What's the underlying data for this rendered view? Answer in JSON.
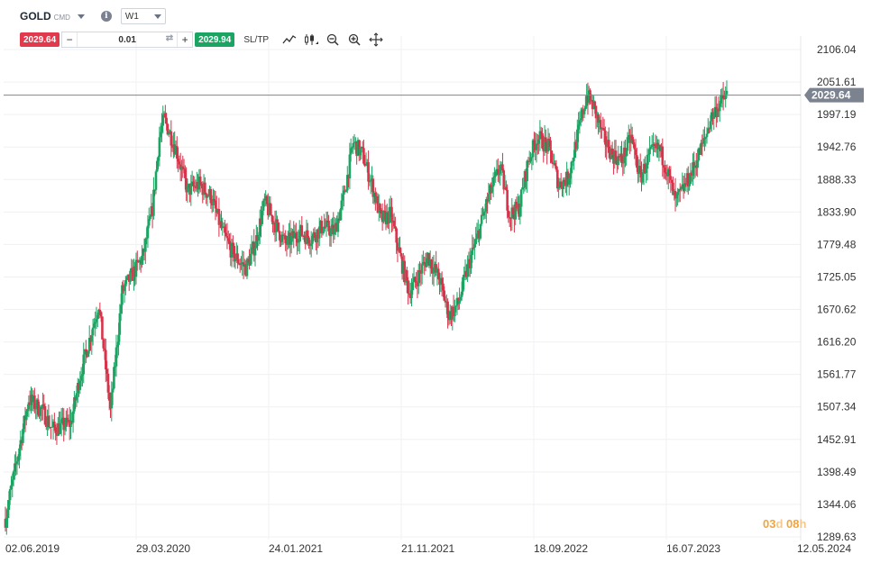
{
  "header": {
    "symbol": "GOLD",
    "symbol_type": "CMD",
    "info_icon": "info-icon",
    "timeframe": "W1"
  },
  "trade": {
    "sell_price": "2029.64",
    "minus_label": "−",
    "quantity": "0.01",
    "plus_label": "+",
    "buy_price": "2029.94",
    "sltp_label": "SL/TP"
  },
  "tools": [
    "line-chart-icon",
    "candles-icon",
    "zoom-out-icon",
    "zoom-in-icon",
    "move-icon"
  ],
  "countdown": {
    "days": "03",
    "days_unit": "d",
    "hours": "08",
    "hours_unit": "h"
  },
  "colors": {
    "up": "#1aa563",
    "down": "#d8334a",
    "price_line": "#7d8590",
    "price_badge": "#7b8390"
  },
  "chart_data": {
    "type": "candlestick",
    "symbol": "GOLD",
    "timeframe": "W1",
    "current_price": 2029.64,
    "current_price_label": "2029.64",
    "y_ticks": [
      "2106.04",
      "2051.61",
      "1997.19",
      "1942.76",
      "1888.33",
      "1833.90",
      "1779.48",
      "1725.05",
      "1670.62",
      "1616.20",
      "1561.77",
      "1507.34",
      "1452.91",
      "1398.49",
      "1344.06",
      "1289.63"
    ],
    "ylim": [
      1289.63,
      2106.04
    ],
    "x_ticks": [
      "02.06.2019",
      "29.03.2020",
      "24.01.2021",
      "21.11.2021",
      "18.09.2022",
      "16.07.2023",
      "12.05.2024"
    ],
    "grid": true,
    "approx_close_path": [
      [
        0,
        1320
      ],
      [
        8,
        1400
      ],
      [
        20,
        1520
      ],
      [
        32,
        1500
      ],
      [
        40,
        1470
      ],
      [
        56,
        1480
      ],
      [
        64,
        1560
      ],
      [
        80,
        1680
      ],
      [
        90,
        1500
      ],
      [
        100,
        1700
      ],
      [
        112,
        1740
      ],
      [
        118,
        1760
      ],
      [
        126,
        1840
      ],
      [
        132,
        1960
      ],
      [
        136,
        1990
      ],
      [
        146,
        1940
      ],
      [
        156,
        1870
      ],
      [
        166,
        1880
      ],
      [
        176,
        1860
      ],
      [
        186,
        1800
      ],
      [
        196,
        1760
      ],
      [
        206,
        1740
      ],
      [
        214,
        1780
      ],
      [
        222,
        1850
      ],
      [
        232,
        1810
      ],
      [
        240,
        1780
      ],
      [
        252,
        1800
      ],
      [
        262,
        1790
      ],
      [
        272,
        1810
      ],
      [
        282,
        1800
      ],
      [
        290,
        1860
      ],
      [
        298,
        1950
      ],
      [
        306,
        1930
      ],
      [
        314,
        1880
      ],
      [
        322,
        1820
      ],
      [
        330,
        1830
      ],
      [
        338,
        1760
      ],
      [
        346,
        1700
      ],
      [
        352,
        1720
      ],
      [
        362,
        1760
      ],
      [
        372,
        1720
      ],
      [
        380,
        1660
      ],
      [
        388,
        1680
      ],
      [
        396,
        1740
      ],
      [
        404,
        1790
      ],
      [
        414,
        1860
      ],
      [
        424,
        1910
      ],
      [
        432,
        1830
      ],
      [
        440,
        1840
      ],
      [
        448,
        1920
      ],
      [
        456,
        1960
      ],
      [
        466,
        1940
      ],
      [
        474,
        1880
      ],
      [
        482,
        1890
      ],
      [
        490,
        1960
      ],
      [
        498,
        2030
      ],
      [
        504,
        2010
      ],
      [
        512,
        1960
      ],
      [
        520,
        1930
      ],
      [
        528,
        1920
      ],
      [
        536,
        1960
      ],
      [
        544,
        1890
      ],
      [
        552,
        1930
      ],
      [
        560,
        1940
      ],
      [
        566,
        1910
      ],
      [
        574,
        1850
      ],
      [
        580,
        1870
      ],
      [
        588,
        1900
      ],
      [
        594,
        1930
      ],
      [
        600,
        1960
      ],
      [
        604,
        1990
      ],
      [
        610,
        2010
      ],
      [
        618,
        2030
      ]
    ]
  }
}
